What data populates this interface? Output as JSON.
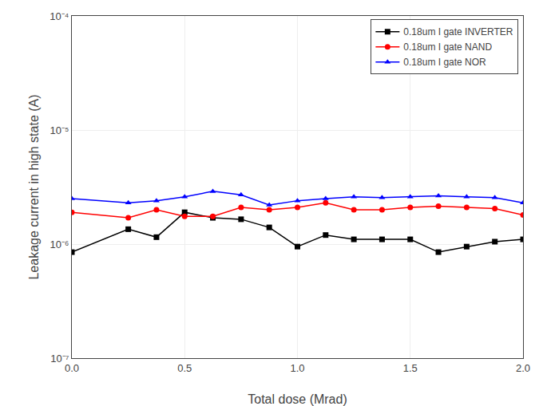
{
  "chart_data": {
    "type": "line",
    "xlabel": "Total dose (Mrad)",
    "ylabel": "Leakage current in high state (A)",
    "log": "y",
    "grid": true,
    "legend": "upper right",
    "xlim": [
      0.0,
      2.0
    ],
    "xticks": [
      {
        "value": 0.0,
        "label": "0.0"
      },
      0.5,
      {
        "value": 1.0,
        "label": "1.0"
      },
      1.5,
      {
        "value": 2.0,
        "label": "2.0"
      }
    ],
    "ylim": [
      1e-07,
      0.0001
    ],
    "yticks": [
      {
        "value": 1e-07,
        "label": "10⁻⁷"
      },
      {
        "value": 1e-06,
        "label": "10⁻⁶"
      },
      {
        "value": 1e-05,
        "label": "10⁻⁵"
      },
      {
        "value": 0.0001,
        "label": "10⁻⁴"
      }
    ],
    "x": [
      0.0,
      0.25,
      0.375,
      0.5,
      0.625,
      0.75,
      0.875,
      1.0,
      1.125,
      1.25,
      1.375,
      1.5,
      1.625,
      1.75,
      1.875,
      2.0
    ],
    "series": [
      {
        "name": "0.18um I gate INVERTER",
        "color": "#000000",
        "marker": "square",
        "values": [
          8.5e-07,
          1.35e-06,
          1.15e-06,
          1.9e-06,
          1.7e-06,
          1.65e-06,
          1.4e-06,
          9.5e-07,
          1.2e-06,
          1.1e-06,
          1.1e-06,
          1.1e-06,
          8.5e-07,
          9.5e-07,
          1.05e-06,
          1.1e-06
        ]
      },
      {
        "name": "0.18um I gate NAND",
        "color": "#ff0000",
        "marker": "circle",
        "values": [
          1.9e-06,
          1.7e-06,
          2e-06,
          1.75e-06,
          1.75e-06,
          2.1e-06,
          2e-06,
          2.1e-06,
          2.3e-06,
          2e-06,
          2e-06,
          2.1e-06,
          2.15e-06,
          2.1e-06,
          2.05e-06,
          1.8e-06
        ]
      },
      {
        "name": "0.18um I gate NOR",
        "color": "#0000ff",
        "marker": "triangle-up",
        "values": [
          2.5e-06,
          2.3e-06,
          2.4e-06,
          2.6e-06,
          2.9e-06,
          2.7e-06,
          2.2e-06,
          2.4e-06,
          2.5e-06,
          2.6e-06,
          2.55e-06,
          2.6e-06,
          2.65e-06,
          2.6e-06,
          2.55e-06,
          2.3e-06
        ]
      }
    ]
  }
}
